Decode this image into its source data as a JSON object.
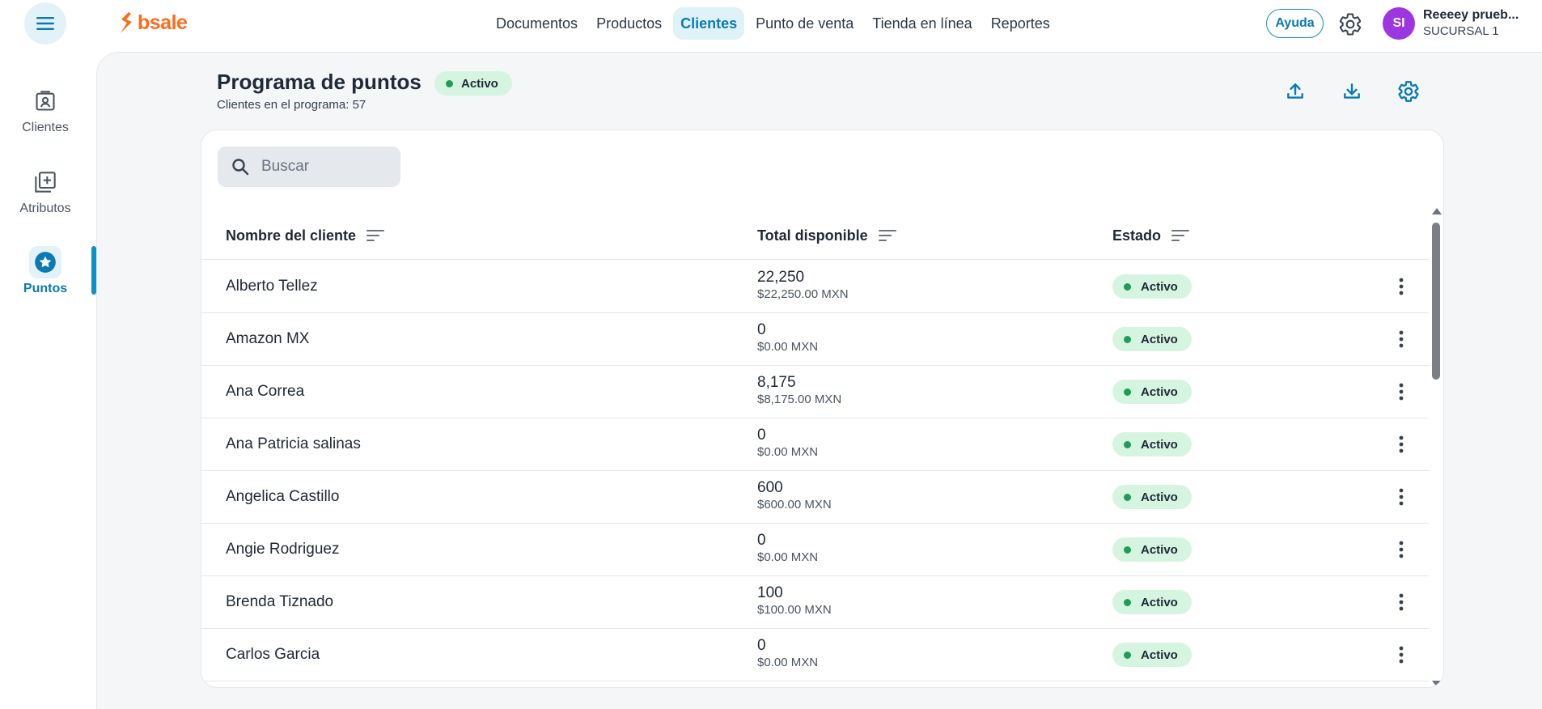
{
  "app": {
    "logo_text": "bsale",
    "accent": "#0b7ab3",
    "brand": "#ff6b1a"
  },
  "nav": {
    "items": [
      "Documentos",
      "Productos",
      "Clientes",
      "Punto de venta",
      "Tienda en línea",
      "Reportes"
    ],
    "active": "Clientes"
  },
  "header": {
    "help_label": "Ayuda",
    "avatar_initials": "SI",
    "user_name": "Reeeey prueb...",
    "branch": "SUCURSAL 1"
  },
  "sidebar": {
    "items": [
      {
        "label": "Clientes",
        "icon": "contact-card-icon"
      },
      {
        "label": "Atributos",
        "icon": "add-box-icon"
      },
      {
        "label": "Puntos",
        "icon": "star-badge-icon",
        "active": true
      }
    ]
  },
  "page": {
    "title": "Programa de puntos",
    "status": "Activo",
    "subtitle": "Clientes en el programa: 57",
    "actions": [
      "upload-icon",
      "download-icon",
      "settings-icon"
    ]
  },
  "search": {
    "placeholder": "Buscar",
    "value": ""
  },
  "table": {
    "columns": [
      "Nombre del cliente",
      "Total disponible",
      "Estado"
    ],
    "rows": [
      {
        "name": "Alberto Tellez",
        "points": "22,250",
        "amount": "$22,250.00 MXN",
        "status": "Activo"
      },
      {
        "name": "Amazon MX",
        "points": "0",
        "amount": "$0.00 MXN",
        "status": "Activo"
      },
      {
        "name": "Ana Correa",
        "points": "8,175",
        "amount": "$8,175.00 MXN",
        "status": "Activo"
      },
      {
        "name": "Ana Patricia salinas",
        "points": "0",
        "amount": "$0.00 MXN",
        "status": "Activo"
      },
      {
        "name": "Angelica Castillo",
        "points": "600",
        "amount": "$600.00 MXN",
        "status": "Activo"
      },
      {
        "name": "Angie Rodriguez",
        "points": "0",
        "amount": "$0.00 MXN",
        "status": "Activo"
      },
      {
        "name": "Brenda Tiznado",
        "points": "100",
        "amount": "$100.00 MXN",
        "status": "Activo"
      },
      {
        "name": "Carlos Garcia",
        "points": "0",
        "amount": "$0.00 MXN",
        "status": "Activo"
      }
    ]
  }
}
